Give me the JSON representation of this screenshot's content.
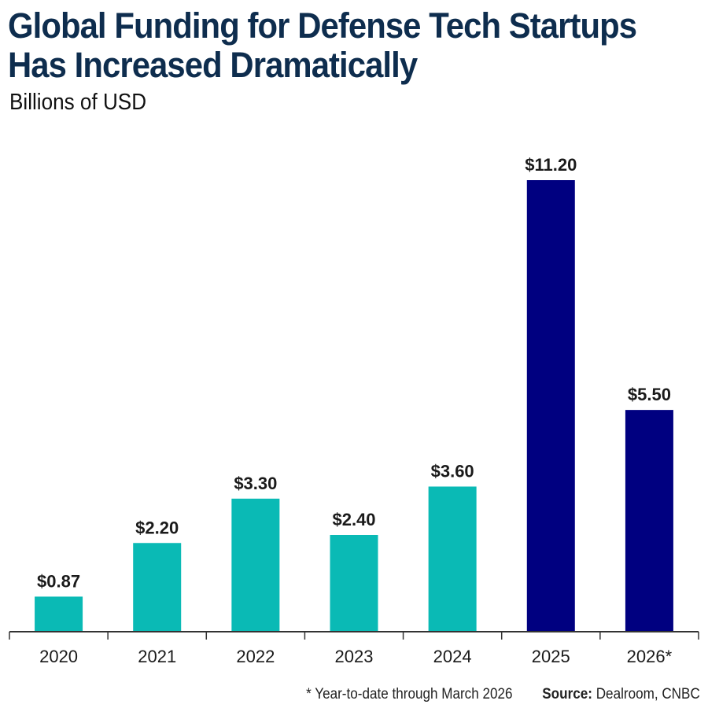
{
  "chart_data": {
    "type": "bar",
    "title": "Global Funding for Defense Tech Startups Has Increased Dramatically",
    "subtitle": "Billions of USD",
    "xlabel": "",
    "ylabel": "Billions of USD",
    "ylim": [
      0,
      11.2
    ],
    "grid": false,
    "categories": [
      "2020",
      "2021",
      "2022",
      "2023",
      "2024",
      "2025",
      "2026*"
    ],
    "values": [
      0.87,
      2.2,
      3.3,
      2.4,
      3.6,
      11.2,
      5.5
    ],
    "data_labels": [
      "$0.87",
      "$2.20",
      "$3.30",
      "$2.40",
      "$3.60",
      "$11.20",
      "$5.50"
    ],
    "colors": [
      "#0abab5",
      "#0abab5",
      "#0abab5",
      "#0abab5",
      "#0abab5",
      "#000080",
      "#000080"
    ]
  },
  "footnote": "* Year-to-date through March 2026",
  "source_label": "Source:",
  "source_text": "Dealroom, CNBC"
}
